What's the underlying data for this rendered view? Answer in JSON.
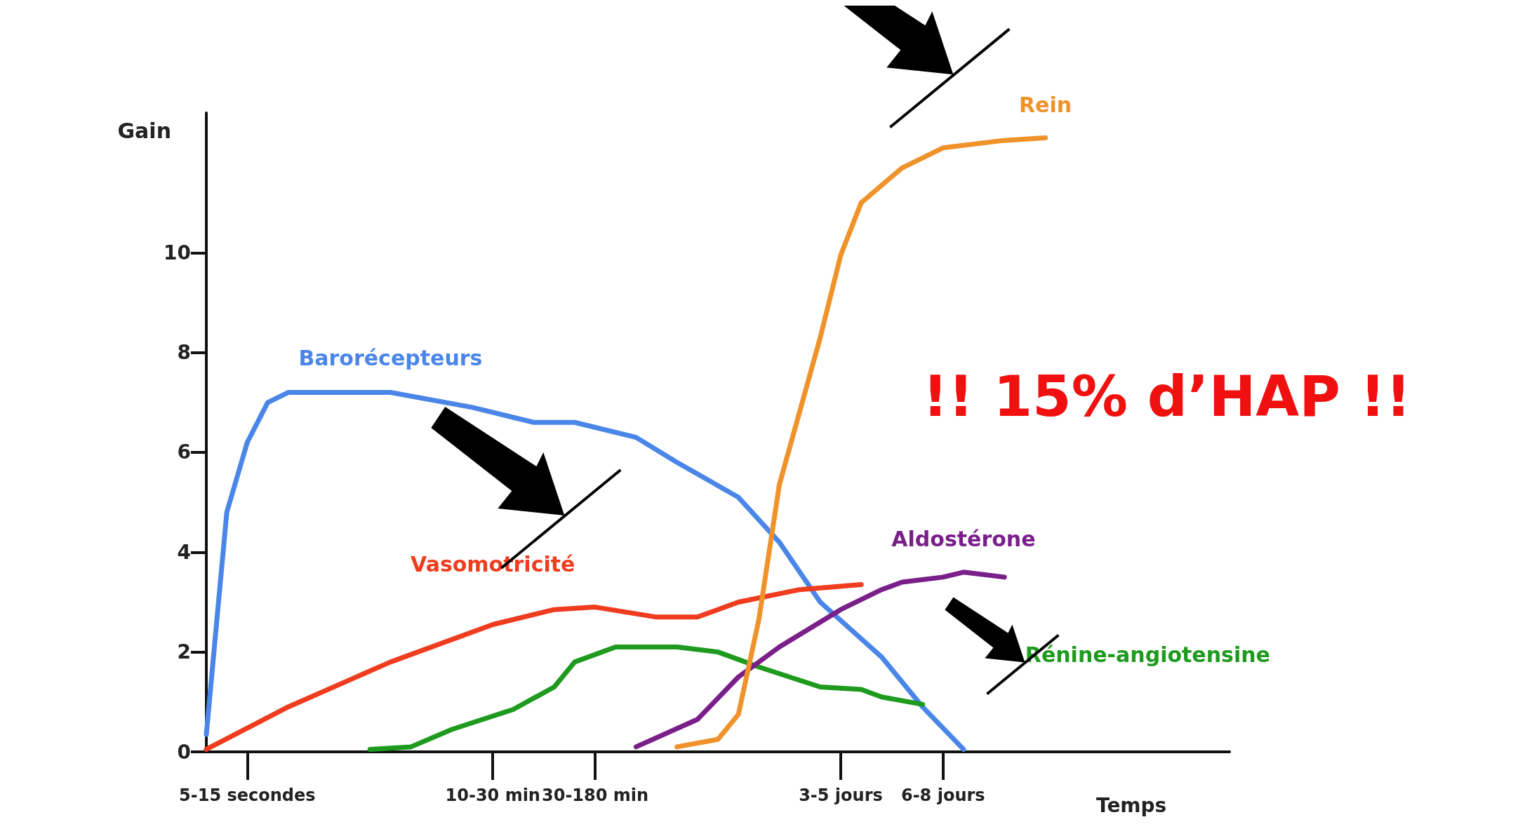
{
  "chart_data": {
    "type": "line",
    "ylabel": "Gain",
    "xlabel": "Temps",
    "ylim": [
      0,
      12.8
    ],
    "categories": [
      null,
      null,
      "5-15 secondes",
      null,
      null,
      null,
      null,
      null,
      null,
      null,
      null,
      null,
      null,
      null,
      "10-30 min",
      null,
      null,
      null,
      null,
      "30-180 min",
      null,
      null,
      null,
      null,
      null,
      null,
      null,
      null,
      null,
      null,
      null,
      "3-5 jours",
      null,
      null,
      null,
      null,
      "6-8 jours",
      null,
      null,
      null,
      null,
      null,
      null,
      null,
      null,
      null,
      null,
      null,
      null,
      null,
      null
    ],
    "yticks": [
      0,
      2,
      4,
      6,
      8,
      10
    ],
    "grid": false,
    "legend": false,
    "marker": "none",
    "line_style": "solid",
    "annotations": [
      "!! 15% d’HAP !!"
    ],
    "series": [
      {
        "name": "Barorécepteurs",
        "color": "#4a86e8",
        "values": [
          0.35,
          4.8,
          6.2,
          7.0,
          7.2,
          null,
          null,
          null,
          null,
          7.2,
          null,
          null,
          null,
          6.9,
          null,
          null,
          6.6,
          null,
          6.6,
          null,
          null,
          6.3,
          null,
          5.8,
          null,
          null,
          5.1,
          null,
          4.2,
          null,
          3.0,
          null,
          null,
          1.9,
          null,
          0.9,
          null,
          0.05,
          null,
          null,
          null,
          null,
          null,
          null,
          null,
          null,
          null,
          null,
          null,
          null,
          null
        ]
      },
      {
        "name": "Vasomotricité",
        "color": "#f03c1e",
        "values": [
          0.05,
          null,
          null,
          null,
          0.9,
          null,
          null,
          null,
          null,
          1.8,
          null,
          null,
          null,
          null,
          2.55,
          null,
          null,
          2.85,
          null,
          2.9,
          null,
          null,
          2.7,
          null,
          2.7,
          null,
          3.0,
          null,
          null,
          3.25,
          null,
          null,
          3.35,
          null,
          null,
          null,
          null,
          null,
          null,
          null,
          null,
          null,
          null,
          null,
          null,
          null,
          null,
          null,
          null,
          null,
          null
        ]
      },
      {
        "name": "Rénine-angiotensine",
        "color": "#1e9a1e",
        "values": [
          null,
          null,
          null,
          null,
          null,
          null,
          null,
          null,
          0.05,
          null,
          0.1,
          null,
          0.45,
          null,
          null,
          0.85,
          null,
          1.3,
          1.8,
          null,
          2.1,
          null,
          null,
          2.1,
          null,
          2.0,
          null,
          1.7,
          null,
          null,
          1.3,
          null,
          1.25,
          1.1,
          null,
          0.95,
          null,
          null,
          null,
          null,
          null,
          null,
          null,
          null,
          null,
          null,
          null,
          null,
          null,
          null,
          null
        ]
      },
      {
        "name": "Aldostérone",
        "color": "#7a1f8a",
        "values": [
          null,
          null,
          null,
          null,
          null,
          null,
          null,
          null,
          null,
          null,
          null,
          null,
          null,
          null,
          null,
          null,
          null,
          null,
          null,
          null,
          null,
          0.1,
          null,
          null,
          0.65,
          null,
          1.5,
          null,
          2.1,
          null,
          null,
          2.85,
          null,
          3.25,
          3.4,
          null,
          3.5,
          3.6,
          null,
          3.5,
          null,
          null,
          null,
          null,
          null,
          null,
          null,
          null,
          null,
          null,
          null
        ]
      },
      {
        "name": "Rein",
        "color": "#f0922a",
        "values": [
          null,
          null,
          null,
          null,
          null,
          null,
          null,
          null,
          null,
          null,
          null,
          null,
          null,
          null,
          null,
          null,
          null,
          null,
          null,
          null,
          null,
          null,
          null,
          0.1,
          null,
          0.25,
          0.75,
          2.65,
          5.35,
          null,
          8.3,
          9.95,
          11.0,
          null,
          11.7,
          null,
          12.1,
          null,
          null,
          12.25,
          null,
          12.3,
          null,
          null,
          null,
          null,
          null,
          null,
          null,
          null,
          null
        ]
      }
    ]
  }
}
